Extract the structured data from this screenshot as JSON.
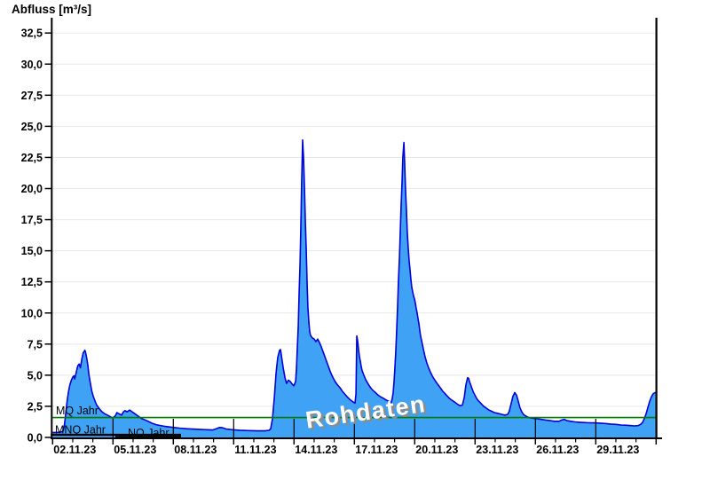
{
  "title": "Abfluss [m³/s]",
  "chart_data": {
    "type": "area",
    "title": "Abfluss [m³/s]",
    "xlabel": "",
    "ylabel": "Abfluss [m³/s]",
    "x_unit_days_origin": "02.11.23 00:00",
    "x_range_days": [
      0,
      30
    ],
    "ylim": [
      0,
      33.7
    ],
    "grid": true,
    "y_ticks": [
      0,
      2.5,
      5,
      7.5,
      10,
      12.5,
      15,
      17.5,
      20,
      22.5,
      25,
      27.5,
      30,
      32.5
    ],
    "y_tick_labels": [
      "0,0",
      "2,5",
      "5,0",
      "7,5",
      "10,0",
      "12,5",
      "15,0",
      "17,5",
      "20,0",
      "22,5",
      "25,0",
      "27,5",
      "30,0",
      "32,5"
    ],
    "x_tick_days": [
      0,
      3,
      6,
      9,
      12,
      15,
      18,
      21,
      24,
      27
    ],
    "x_tick_labels": [
      "02.11.23",
      "05.11.23",
      "08.11.23",
      "11.11.23",
      "14.11.23",
      "17.11.23",
      "20.11.23",
      "23.11.23",
      "26.11.23",
      "29.11.23"
    ],
    "minor_tick_every_days": 1,
    "watermark": "Rohdaten",
    "reference_lines": [
      {
        "label": "MQ Jahr",
        "value": 1.6,
        "color": "#007a00",
        "full_width": true
      },
      {
        "label": "MNQ Jahr",
        "value": 0.21,
        "color": "#000000",
        "full_width": false
      },
      {
        "label": "NQ Jahr",
        "value": 0.05,
        "color": "#000000",
        "full_width": false
      }
    ],
    "colors": {
      "area_fill": "#3fa2f5",
      "area_stroke": "#0000d8",
      "grid": "#e8e8e8",
      "axis": "#000000",
      "mq_line": "#007a00",
      "watermark_fill": "#ffffff",
      "watermark_shadow": "#8c8c8c"
    },
    "series": [
      {
        "name": "Abfluss Rohdaten",
        "points": [
          [
            0,
            0.4
          ],
          [
            0.2,
            0.4
          ],
          [
            0.35,
            0.42
          ],
          [
            0.45,
            0.45
          ],
          [
            0.52,
            0.55
          ],
          [
            0.58,
            0.9
          ],
          [
            0.62,
            1.5
          ],
          [
            0.67,
            2.2
          ],
          [
            0.72,
            2.9
          ],
          [
            0.78,
            3.6
          ],
          [
            0.85,
            4.2
          ],
          [
            0.93,
            4.6
          ],
          [
            1.0,
            4.85
          ],
          [
            1.06,
            4.95
          ],
          [
            1.1,
            4.7
          ],
          [
            1.17,
            5.2
          ],
          [
            1.25,
            5.75
          ],
          [
            1.32,
            5.9
          ],
          [
            1.38,
            5.6
          ],
          [
            1.45,
            6.3
          ],
          [
            1.52,
            6.8
          ],
          [
            1.6,
            7.0
          ],
          [
            1.63,
            6.9
          ],
          [
            1.68,
            6.5
          ],
          [
            1.75,
            5.8
          ],
          [
            1.8,
            5.1
          ],
          [
            1.87,
            4.4
          ],
          [
            1.95,
            3.7
          ],
          [
            2.02,
            3.3
          ],
          [
            2.1,
            2.95
          ],
          [
            2.19,
            2.6
          ],
          [
            2.28,
            2.4
          ],
          [
            2.37,
            2.2
          ],
          [
            2.46,
            2.05
          ],
          [
            2.59,
            1.9
          ],
          [
            2.72,
            1.8
          ],
          [
            2.85,
            1.68
          ],
          [
            2.99,
            1.56
          ],
          [
            3.12,
            1.75
          ],
          [
            3.2,
            2.0
          ],
          [
            3.3,
            1.9
          ],
          [
            3.43,
            1.8
          ],
          [
            3.52,
            2.05
          ],
          [
            3.6,
            2.15
          ],
          [
            3.7,
            2.05
          ],
          [
            3.83,
            2.2
          ],
          [
            3.91,
            2.1
          ],
          [
            4.05,
            1.95
          ],
          [
            4.18,
            1.8
          ],
          [
            4.31,
            1.65
          ],
          [
            4.44,
            1.5
          ],
          [
            4.58,
            1.42
          ],
          [
            4.71,
            1.32
          ],
          [
            4.84,
            1.22
          ],
          [
            4.97,
            1.12
          ],
          [
            5.15,
            1.03
          ],
          [
            5.33,
            0.96
          ],
          [
            5.55,
            0.9
          ],
          [
            5.77,
            0.85
          ],
          [
            6.03,
            0.8
          ],
          [
            6.3,
            0.75
          ],
          [
            6.65,
            0.7
          ],
          [
            7.09,
            0.66
          ],
          [
            7.53,
            0.63
          ],
          [
            7.95,
            0.6
          ],
          [
            8.1,
            0.68
          ],
          [
            8.3,
            0.8
          ],
          [
            8.45,
            0.78
          ],
          [
            8.63,
            0.68
          ],
          [
            8.94,
            0.62
          ],
          [
            9.3,
            0.58
          ],
          [
            9.74,
            0.55
          ],
          [
            10.18,
            0.53
          ],
          [
            10.53,
            0.53
          ],
          [
            10.75,
            0.56
          ],
          [
            10.84,
            0.7
          ],
          [
            10.93,
            1.5
          ],
          [
            11.02,
            3.2
          ],
          [
            11.11,
            5.2
          ],
          [
            11.19,
            6.4
          ],
          [
            11.28,
            7.0
          ],
          [
            11.33,
            7.05
          ],
          [
            11.37,
            6.6
          ],
          [
            11.46,
            5.6
          ],
          [
            11.55,
            4.8
          ],
          [
            11.63,
            4.35
          ],
          [
            11.72,
            4.6
          ],
          [
            11.81,
            4.5
          ],
          [
            11.9,
            4.3
          ],
          [
            11.99,
            4.15
          ],
          [
            12.08,
            4.5
          ],
          [
            12.12,
            5.5
          ],
          [
            12.16,
            7.0
          ],
          [
            12.21,
            9.0
          ],
          [
            12.25,
            11.5
          ],
          [
            12.3,
            14.0
          ],
          [
            12.34,
            17.0
          ],
          [
            12.38,
            20.5
          ],
          [
            12.43,
            23.9
          ],
          [
            12.47,
            22.5
          ],
          [
            12.52,
            20.0
          ],
          [
            12.56,
            17.5
          ],
          [
            12.61,
            15.0
          ],
          [
            12.65,
            12.5
          ],
          [
            12.69,
            10.5
          ],
          [
            12.74,
            9.2
          ],
          [
            12.78,
            8.5
          ],
          [
            12.82,
            8.2
          ],
          [
            12.91,
            8.0
          ],
          [
            13.0,
            7.9
          ],
          [
            13.09,
            7.7
          ],
          [
            13.18,
            7.9
          ],
          [
            13.27,
            7.6
          ],
          [
            13.35,
            7.3
          ],
          [
            13.44,
            6.9
          ],
          [
            13.53,
            6.5
          ],
          [
            13.62,
            6.1
          ],
          [
            13.71,
            5.7
          ],
          [
            13.8,
            5.3
          ],
          [
            13.88,
            5.0
          ],
          [
            13.97,
            4.7
          ],
          [
            14.06,
            4.45
          ],
          [
            14.15,
            4.25
          ],
          [
            14.28,
            4.0
          ],
          [
            14.41,
            3.7
          ],
          [
            14.54,
            3.45
          ],
          [
            14.68,
            3.2
          ],
          [
            14.81,
            3.0
          ],
          [
            14.94,
            2.85
          ],
          [
            15.03,
            2.75
          ],
          [
            15.08,
            3.5
          ],
          [
            15.1,
            6.0
          ],
          [
            15.12,
            8.15
          ],
          [
            15.16,
            7.8
          ],
          [
            15.21,
            7.0
          ],
          [
            15.25,
            6.5
          ],
          [
            15.3,
            6.1
          ],
          [
            15.34,
            5.7
          ],
          [
            15.38,
            5.4
          ],
          [
            15.47,
            5.0
          ],
          [
            15.56,
            4.65
          ],
          [
            15.65,
            4.4
          ],
          [
            15.74,
            4.15
          ],
          [
            15.83,
            3.95
          ],
          [
            15.91,
            3.8
          ],
          [
            16.05,
            3.6
          ],
          [
            16.18,
            3.4
          ],
          [
            16.31,
            3.25
          ],
          [
            16.44,
            3.15
          ],
          [
            16.58,
            3.0
          ],
          [
            16.71,
            2.9
          ],
          [
            16.8,
            2.8
          ],
          [
            16.84,
            2.85
          ],
          [
            16.88,
            3.1
          ],
          [
            16.93,
            3.6
          ],
          [
            16.97,
            4.5
          ],
          [
            17.01,
            5.5
          ],
          [
            17.06,
            7.0
          ],
          [
            17.1,
            8.5
          ],
          [
            17.15,
            10.5
          ],
          [
            17.19,
            12.5
          ],
          [
            17.24,
            14.5
          ],
          [
            17.28,
            16.5
          ],
          [
            17.32,
            18.5
          ],
          [
            17.37,
            20.5
          ],
          [
            17.41,
            22.5
          ],
          [
            17.46,
            23.7
          ],
          [
            17.5,
            22.0
          ],
          [
            17.54,
            20.0
          ],
          [
            17.59,
            18.2
          ],
          [
            17.63,
            16.5
          ],
          [
            17.68,
            15.2
          ],
          [
            17.72,
            14.2
          ],
          [
            17.77,
            13.4
          ],
          [
            17.81,
            12.7
          ],
          [
            17.85,
            12.1
          ],
          [
            17.9,
            11.7
          ],
          [
            17.94,
            11.4
          ],
          [
            17.99,
            11.1
          ],
          [
            18.03,
            10.8
          ],
          [
            18.07,
            10.4
          ],
          [
            18.12,
            10.0
          ],
          [
            18.16,
            9.6
          ],
          [
            18.21,
            9.1
          ],
          [
            18.25,
            8.6
          ],
          [
            18.29,
            8.15
          ],
          [
            18.34,
            7.8
          ],
          [
            18.43,
            7.1
          ],
          [
            18.51,
            6.5
          ],
          [
            18.6,
            6.0
          ],
          [
            18.69,
            5.6
          ],
          [
            18.78,
            5.25
          ],
          [
            18.87,
            4.95
          ],
          [
            18.96,
            4.7
          ],
          [
            19.04,
            4.5
          ],
          [
            19.13,
            4.3
          ],
          [
            19.22,
            4.1
          ],
          [
            19.31,
            3.9
          ],
          [
            19.4,
            3.7
          ],
          [
            19.49,
            3.55
          ],
          [
            19.57,
            3.4
          ],
          [
            19.66,
            3.25
          ],
          [
            19.75,
            3.1
          ],
          [
            19.84,
            3.0
          ],
          [
            19.93,
            2.9
          ],
          [
            20.02,
            2.8
          ],
          [
            20.1,
            2.7
          ],
          [
            20.19,
            2.6
          ],
          [
            20.28,
            2.55
          ],
          [
            20.37,
            2.6
          ],
          [
            20.46,
            3.2
          ],
          [
            20.54,
            4.2
          ],
          [
            20.63,
            4.8
          ],
          [
            20.68,
            4.75
          ],
          [
            20.72,
            4.5
          ],
          [
            20.81,
            4.1
          ],
          [
            20.9,
            3.7
          ],
          [
            20.99,
            3.4
          ],
          [
            21.07,
            3.15
          ],
          [
            21.16,
            2.95
          ],
          [
            21.25,
            2.8
          ],
          [
            21.34,
            2.65
          ],
          [
            21.43,
            2.5
          ],
          [
            21.52,
            2.4
          ],
          [
            21.6,
            2.3
          ],
          [
            21.69,
            2.2
          ],
          [
            21.82,
            2.1
          ],
          [
            21.96,
            2.0
          ],
          [
            22.09,
            1.95
          ],
          [
            22.22,
            1.9
          ],
          [
            22.35,
            1.85
          ],
          [
            22.48,
            1.8
          ],
          [
            22.62,
            1.85
          ],
          [
            22.7,
            2.1
          ],
          [
            22.79,
            2.7
          ],
          [
            22.88,
            3.3
          ],
          [
            22.97,
            3.6
          ],
          [
            23.06,
            3.4
          ],
          [
            23.15,
            2.9
          ],
          [
            23.23,
            2.4
          ],
          [
            23.32,
            2.05
          ],
          [
            23.41,
            1.85
          ],
          [
            23.54,
            1.7
          ],
          [
            23.67,
            1.6
          ],
          [
            23.85,
            1.55
          ],
          [
            24.07,
            1.5
          ],
          [
            24.29,
            1.45
          ],
          [
            24.51,
            1.4
          ],
          [
            24.73,
            1.35
          ],
          [
            24.95,
            1.3
          ],
          [
            25.17,
            1.3
          ],
          [
            25.31,
            1.4
          ],
          [
            25.44,
            1.45
          ],
          [
            25.57,
            1.35
          ],
          [
            25.75,
            1.3
          ],
          [
            25.97,
            1.25
          ],
          [
            26.19,
            1.22
          ],
          [
            26.41,
            1.2
          ],
          [
            26.67,
            1.18
          ],
          [
            26.94,
            1.17
          ],
          [
            27.2,
            1.15
          ],
          [
            27.47,
            1.12
          ],
          [
            27.73,
            1.08
          ],
          [
            28.0,
            1.05
          ],
          [
            28.26,
            1.0
          ],
          [
            28.53,
            0.98
          ],
          [
            28.75,
            0.95
          ],
          [
            28.92,
            0.93
          ],
          [
            29.1,
            0.95
          ],
          [
            29.23,
            1.05
          ],
          [
            29.32,
            1.2
          ],
          [
            29.41,
            1.5
          ],
          [
            29.5,
            1.9
          ],
          [
            29.59,
            2.4
          ],
          [
            29.68,
            2.9
          ],
          [
            29.76,
            3.25
          ],
          [
            29.85,
            3.5
          ],
          [
            29.94,
            3.6
          ],
          [
            30.0,
            3.6
          ]
        ]
      }
    ]
  }
}
